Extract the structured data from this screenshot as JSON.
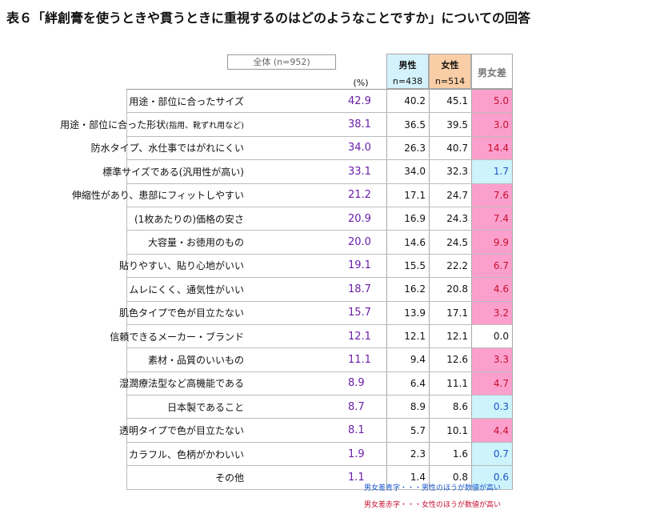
{
  "title": "表６「絆創膏を使うときや貫うときに重視するのはどのようなことですか」についての回答",
  "header": {
    "total_label": "全体 (n=952)",
    "unit": "(%)",
    "male_label": "男性",
    "male_n": "n=438",
    "female_label": "女性",
    "female_n": "n=514",
    "diff_label": "男女差"
  },
  "rows": [
    {
      "label": "用途・部位に合ったサイズ",
      "total": "42.9",
      "male": "40.2",
      "female": "45.1",
      "diff": "5.0",
      "diff_color": "red"
    },
    {
      "label": "用途・部位に合った形状",
      "label_small": "(指用、靴ずれ用など)",
      "total": "38.1",
      "male": "36.5",
      "female": "39.5",
      "diff": "3.0",
      "diff_color": "red"
    },
    {
      "label": "防水タイプ、水仕事ではがれにくい",
      "total": "34.0",
      "male": "26.3",
      "female": "40.7",
      "diff": "14.4",
      "diff_color": "red"
    },
    {
      "label": "標準サイズである(汎用性が高い)",
      "total": "33.1",
      "male": "34.0",
      "female": "32.3",
      "diff": "1.7",
      "diff_color": "blue"
    },
    {
      "label": "伸縮性があり、患部にフィットしやすい",
      "total": "21.2",
      "male": "17.1",
      "female": "24.7",
      "diff": "7.6",
      "diff_color": "red"
    },
    {
      "label": "(1枚あたりの)価格の安さ",
      "total": "20.9",
      "male": "16.9",
      "female": "24.3",
      "diff": "7.4",
      "diff_color": "red"
    },
    {
      "label": "大容量・お徳用のもの",
      "total": "20.0",
      "male": "14.6",
      "female": "24.5",
      "diff": "9.9",
      "diff_color": "red"
    },
    {
      "label": "貼りやすい、貼り心地がいい",
      "total": "19.1",
      "male": "15.5",
      "female": "22.2",
      "diff": "6.7",
      "diff_color": "red"
    },
    {
      "label": "ムレにくく、通気性がいい",
      "total": "18.7",
      "male": "16.2",
      "female": "20.8",
      "diff": "4.6",
      "diff_color": "red"
    },
    {
      "label": "肌色タイプで色が目立たない",
      "total": "15.7",
      "male": "13.9",
      "female": "17.1",
      "diff": "3.2",
      "diff_color": "red"
    },
    {
      "label": "信頼できるメーカー・ブランド",
      "total": "12.1",
      "male": "12.1",
      "female": "12.1",
      "diff": "0.0",
      "diff_color": "none"
    },
    {
      "label": "素材・品質のいいもの",
      "total": "11.1",
      "male": "9.4",
      "female": "12.6",
      "diff": "3.3",
      "diff_color": "red"
    },
    {
      "label": "湿潤療法型など高機能である",
      "total": "8.9",
      "male": "6.4",
      "female": "11.1",
      "diff": "4.7",
      "diff_color": "red"
    },
    {
      "label": "日本製であること",
      "total": "8.7",
      "male": "8.9",
      "female": "8.6",
      "diff": "0.3",
      "diff_color": "blue"
    },
    {
      "label": "透明タイプで色が目立たない",
      "total": "8.1",
      "male": "5.7",
      "female": "10.1",
      "diff": "4.4",
      "diff_color": "red"
    },
    {
      "label": "カラフル、色柄がかわいい",
      "total": "1.9",
      "male": "2.3",
      "female": "1.6",
      "diff": "0.7",
      "diff_color": "blue"
    },
    {
      "label": "その他",
      "total": "1.1",
      "male": "1.4",
      "female": "0.8",
      "diff": "0.6",
      "diff_color": "blue"
    }
  ],
  "notes": {
    "blue": "男女差青字・・・男性のほうが数値が高い",
    "red": "男女差赤字・・・女性のほうが数値が高い"
  },
  "colors": {
    "male_header": "#d4f2fb",
    "female_header": "#f9cda6",
    "diff_red_bg": "#fba0cd",
    "diff_blue_bg": "#cdf3fb",
    "total_value": "#6a1fa8"
  }
}
